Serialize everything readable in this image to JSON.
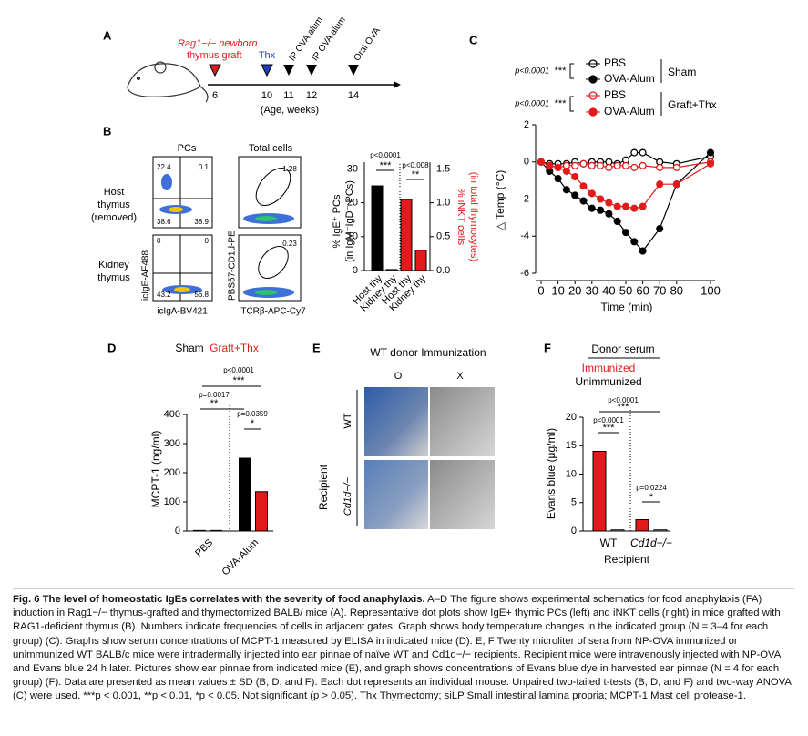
{
  "figure": {
    "a": {
      "letter": "A",
      "graft1": "Rag1−/− newborn",
      "graft2": "thymus graft",
      "thx": "Thx",
      "ip1": "IP OVA alum",
      "ip2": "IP OVA alum",
      "oral": "Oral OVA",
      "weeks": [
        "6",
        "10",
        "11",
        "12",
        "14"
      ],
      "axis": "(Age, weeks)"
    },
    "b": {
      "letter": "B",
      "pcs": "PCs",
      "total": "Total cells",
      "host": [
        "Host",
        "thymus",
        "(removed)"
      ],
      "kidney": [
        "Kidney",
        "thymus"
      ],
      "gates": [
        "22.4",
        "0.1",
        "38.6",
        "38.9",
        "0",
        "0",
        "43.2",
        "56.8",
        "1.28",
        "0.23"
      ],
      "xlab1": "icIgA-BV421",
      "ylab1": "icIgE-AF488",
      "xlab2": "TCRβ-APC-Cy7",
      "ylab2": "PBS57-CD1d-PE"
    },
    "c": {
      "letter": "C"
    },
    "d": {
      "letter": "D"
    },
    "e": {
      "letter": "E",
      "title": "WT donor Immunization",
      "o": "O",
      "x": "X",
      "recipient": "Recipient",
      "wt": "WT",
      "cd1d": "Cd1d−/−"
    },
    "f": {
      "letter": "F"
    }
  },
  "chart_data": [
    {
      "type": "bar",
      "categories": [
        "Host thy",
        "Kidney thy",
        "Host thy",
        "Kidney thy"
      ],
      "series": [
        {
          "color": "#000000",
          "values": [
            25,
            0.3,
            null,
            null
          ]
        },
        {
          "color": "#e31a1c",
          "axis": "y2",
          "values": [
            null,
            null,
            1.05,
            0.3
          ]
        }
      ],
      "ylabel": [
        "% IgE⁺ PCs",
        "(in IgM⁻IgD⁻ PCs)"
      ],
      "y2label": [
        "% iNKT cells",
        "(in total thymocytes)"
      ],
      "ylim": [
        0,
        32
      ],
      "yticks": [
        0,
        10,
        20,
        30
      ],
      "y2lim": [
        0,
        1.6
      ],
      "y2ticks": [
        {
          "value": 0,
          "label": "0.0"
        },
        0.5,
        {
          "value": 1,
          "label": "1.0"
        },
        1.5
      ],
      "annotations": [
        "p<0.0001",
        "***",
        "p<0.008",
        "**"
      ]
    },
    {
      "type": "line",
      "x": [
        0,
        5,
        10,
        15,
        20,
        25,
        30,
        35,
        40,
        45,
        50,
        55,
        60,
        70,
        80,
        100
      ],
      "series": [
        {
          "name": "PBS",
          "color": "#000000",
          "marker": "open",
          "values": [
            0,
            -0.1,
            -0.1,
            -0.1,
            0,
            -0.1,
            0,
            0,
            0,
            -0.1,
            0.1,
            0.5,
            0.5,
            0,
            -0.1,
            0.3
          ]
        },
        {
          "name": "OVA-Alum",
          "color": "#000000",
          "marker": "filled",
          "values": [
            0,
            -0.5,
            -0.9,
            -1.5,
            -1.8,
            -2.1,
            -2.5,
            -2.6,
            -2.8,
            -3.2,
            -3.8,
            -4.3,
            -4.8,
            -3.6,
            -1.2,
            0.5
          ]
        },
        {
          "name": "PBS",
          "color": "#e31a1c",
          "marker": "open",
          "values": [
            0,
            -0.2,
            -0.3,
            -0.2,
            -0.2,
            -0.1,
            -0.2,
            -0.2,
            -0.3,
            -0.2,
            -0.2,
            -0.3,
            -0.2,
            -0.3,
            -0.3,
            0
          ]
        },
        {
          "name": "OVA-Alum",
          "color": "#e31a1c",
          "marker": "filled",
          "values": [
            0,
            -0.2,
            -0.3,
            -0.5,
            -0.8,
            -1.3,
            -1.7,
            -2,
            -2.2,
            -2.4,
            -2.4,
            -2.5,
            -2.4,
            -1.2,
            -1.2,
            -0.1
          ]
        }
      ],
      "groups": [
        "Sham",
        "Graft+Thx"
      ],
      "pvalue": [
        "p<0.0001",
        "p<0.0001"
      ],
      "stars": [
        "***",
        "***"
      ],
      "xlabel": "Time (min)",
      "ylabel": "△ Temp (°C)",
      "xlim": [
        0,
        100
      ],
      "xticks": [
        0,
        10,
        20,
        30,
        40,
        50,
        60,
        70,
        80,
        100
      ],
      "ylim": [
        -6,
        2
      ],
      "yticks": [
        -6,
        -4,
        -2,
        0,
        2
      ]
    },
    {
      "type": "bar",
      "categories": [
        "PBS",
        "OVA-Alum"
      ],
      "series": [
        {
          "name": "Sham",
          "color": "#000000",
          "values": [
            2,
            250
          ]
        },
        {
          "name": "Graft+Thx",
          "color": "#e31a1c",
          "values": [
            2,
            135
          ]
        }
      ],
      "ylabel": "MCPT-1 (ng/ml)",
      "ylim": [
        0,
        400
      ],
      "yticks": [
        0,
        100,
        200,
        300,
        400
      ],
      "annotations": [
        "p<0.0001",
        "***",
        "p=0.0017",
        "**",
        "p=0.0359",
        "*"
      ]
    },
    {
      "type": "bar",
      "title": "Donor serum",
      "categories": [
        "WT",
        "Cd1d−/−"
      ],
      "series": [
        {
          "name": "Immunized",
          "color": "#e31a1c",
          "values": [
            14,
            2
          ]
        },
        {
          "name": "Unimmunized",
          "color": "#000000",
          "values": [
            0.2,
            0.2
          ]
        }
      ],
      "ylabel": "Evans blue (μg/ml)",
      "xlabel": "Recipient",
      "ylim": [
        0,
        20
      ],
      "yticks": [
        0,
        5,
        10,
        15,
        20
      ],
      "annotations": [
        "p<0.0001",
        "***",
        "p<0.0001",
        "***",
        "p=0.0224",
        "*"
      ]
    }
  ],
  "caption": {
    "title": "Fig. 6 The level of homeostatic IgEs correlates with the severity of food anaphylaxis.",
    "body": "A–D The figure shows experimental schematics for food anaphylaxis (FA) induction in Rag1−/− thymus-grafted and thymectomized BALB/ mice (A). Representative dot plots show IgE+ thymic PCs (left) and iNKT cells (right) in mice grafted with RAG1-deficient thymus (B). Numbers indicate frequencies of cells in adjacent gates. Graph shows body temperature changes in the indicated group (N = 3–4 for each group) (C). Graphs show serum concentrations of MCPT-1 measured by ELISA in indicated mice (D). E, F Twenty microliter of sera from NP-OVA immunized or unimmunized WT BALB/c mice were intradermally injected into ear pinnae of naïve WT and Cd1d−/− recipients. Recipient mice were intravenously injected with NP-OVA and Evans blue 24 h later. Pictures show ear pinnae from indicated mice (E), and graph shows concentrations of Evans blue dye in harvested ear pinnae (N = 4 for each group) (F). Data are presented as mean values ± SD (B, D, and F). Each dot represents an individual mouse. Unpaired two-tailed t-tests (B, D, and F) and two-way ANOVA (C) were used. ***p < 0.001, **p < 0.01, *p < 0.05. Not significant (p > 0.05). Thx Thymectomy; siLP Small intestinal lamina propria; MCPT-1 Mast cell protease-1."
  }
}
